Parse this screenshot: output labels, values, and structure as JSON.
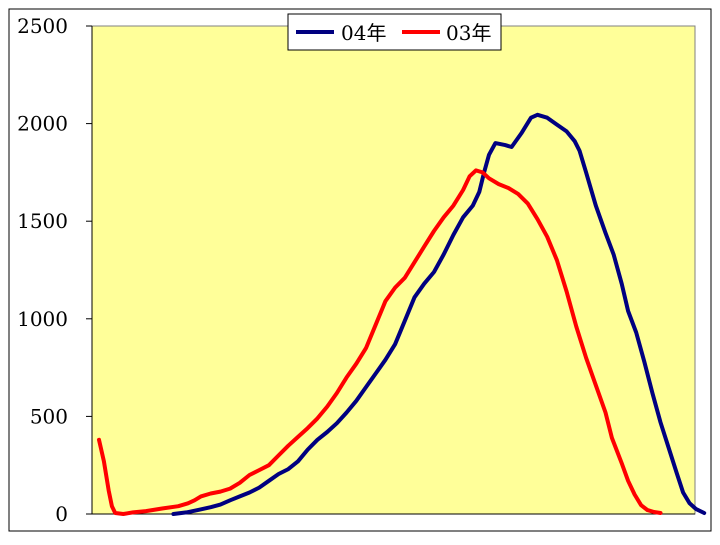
{
  "chart_data": {
    "type": "line",
    "title": "",
    "xlabel": "",
    "ylabel": "",
    "ylim": [
      0,
      2500
    ],
    "y_ticks": [
      "0",
      "500",
      "1000",
      "1500",
      "2000",
      "2500"
    ],
    "x_ticks_shown": false,
    "grid": false,
    "plot_background": "#FFFF99",
    "legend_position": "top-center",
    "x": [
      1,
      2,
      3,
      4,
      5,
      6,
      7,
      8,
      9,
      10,
      11,
      12,
      13,
      14,
      15,
      16,
      17,
      18,
      19,
      20,
      21,
      22,
      23,
      24,
      25,
      26,
      27,
      28,
      29,
      30,
      31,
      32,
      33,
      34,
      35,
      36,
      37,
      38,
      39,
      40,
      41,
      42,
      43,
      44,
      45,
      46,
      47,
      48,
      49,
      50,
      51,
      52,
      53,
      54,
      55,
      56,
      57,
      58,
      59,
      60,
      61,
      62,
      63,
      64,
      65,
      66,
      67,
      68,
      69,
      70,
      71,
      72,
      73,
      74,
      75,
      76,
      77,
      78,
      79,
      80,
      81,
      82,
      83,
      84,
      85,
      86,
      87,
      88,
      89,
      90,
      91,
      92,
      93,
      94,
      95,
      96,
      97,
      98,
      99,
      100,
      101,
      102,
      103,
      104,
      105,
      106,
      107,
      108,
      109,
      110,
      111,
      112,
      113,
      114,
      115,
      116,
      117,
      118,
      119,
      120,
      121,
      122,
      123,
      124,
      125,
      126,
      127,
      128,
      129,
      130,
      131,
      132,
      133,
      134,
      135,
      136,
      137,
      138,
      139,
      140,
      141,
      142,
      143,
      144,
      145,
      146,
      147,
      148,
      149,
      150,
      151,
      152,
      153,
      154,
      155,
      156,
      157,
      158,
      159,
      160,
      161,
      162,
      163,
      164,
      165,
      166,
      167,
      168,
      169,
      170,
      171,
      172,
      173,
      174,
      175,
      176,
      177,
      178,
      179,
      180,
      181,
      182,
      183,
      184,
      185,
      186,
      187,
      188,
      189,
      190,
      191,
      192,
      193,
      194,
      195,
      196,
      197,
      198,
      199,
      200,
      201,
      202,
      203,
      204,
      205,
      206,
      207,
      208,
      209,
      210,
      211,
      212,
      213,
      214,
      215,
      216,
      217,
      218,
      219,
      220,
      221,
      222,
      223,
      224,
      225,
      226,
      227,
      228,
      229,
      230,
      231,
      232,
      233,
      234,
      235,
      236,
      237,
      238,
      239,
      240,
      241,
      242,
      243,
      244,
      245,
      246,
      247,
      248,
      249,
      250,
      251,
      252,
      253,
      254,
      255,
      256,
      257,
      258,
      259,
      260,
      261,
      262,
      263,
      264,
      265,
      266,
      267,
      268,
      269,
      270,
      271,
      272,
      273,
      274,
      275,
      276,
      277,
      278,
      279,
      280,
      281,
      282,
      283,
      284,
      285,
      286,
      287,
      288,
      289,
      290,
      291,
      292,
      293,
      294,
      295,
      296,
      297,
      298,
      299,
      300,
      301,
      302,
      303,
      304,
      305,
      306,
      307,
      308,
      309,
      310,
      311,
      312,
      313,
      314,
      315,
      316,
      317,
      318,
      319,
      320,
      321,
      322,
      323,
      324,
      325,
      326,
      327,
      328,
      329,
      330,
      331,
      332,
      333,
      334,
      335,
      336,
      337,
      338,
      339,
      340,
      341,
      342,
      343,
      344,
      345,
      346,
      347,
      348,
      349,
      350,
      351,
      352,
      353,
      354,
      355,
      356,
      357,
      358,
      359,
      360,
      361,
      362,
      363,
      364,
      365
    ],
    "series": [
      {
        "name": "04年",
        "color": "#000080",
        "points": [
          [
            47,
            0
          ],
          [
            55,
            8
          ],
          [
            62,
            20
          ],
          [
            70,
            35
          ],
          [
            76,
            48
          ],
          [
            82,
            70
          ],
          [
            88,
            90
          ],
          [
            94,
            110
          ],
          [
            100,
            135
          ],
          [
            106,
            170
          ],
          [
            112,
            205
          ],
          [
            118,
            230
          ],
          [
            124,
            270
          ],
          [
            130,
            330
          ],
          [
            136,
            380
          ],
          [
            142,
            420
          ],
          [
            148,
            465
          ],
          [
            154,
            520
          ],
          [
            160,
            580
          ],
          [
            166,
            650
          ],
          [
            172,
            720
          ],
          [
            178,
            790
          ],
          [
            184,
            870
          ],
          [
            190,
            990
          ],
          [
            196,
            1110
          ],
          [
            202,
            1180
          ],
          [
            208,
            1240
          ],
          [
            214,
            1330
          ],
          [
            220,
            1430
          ],
          [
            226,
            1520
          ],
          [
            232,
            1580
          ],
          [
            236,
            1650
          ],
          [
            239,
            1750
          ],
          [
            242,
            1840
          ],
          [
            246,
            1900
          ],
          [
            252,
            1890
          ],
          [
            256,
            1880
          ],
          [
            262,
            1950
          ],
          [
            268,
            2030
          ],
          [
            272,
            2045
          ],
          [
            278,
            2030
          ],
          [
            284,
            1995
          ],
          [
            290,
            1960
          ],
          [
            295,
            1910
          ],
          [
            298,
            1860
          ],
          [
            302,
            1750
          ],
          [
            308,
            1580
          ],
          [
            314,
            1440
          ],
          [
            319,
            1330
          ],
          [
            324,
            1180
          ],
          [
            328,
            1040
          ],
          [
            333,
            930
          ],
          [
            338,
            780
          ],
          [
            343,
            620
          ],
          [
            348,
            470
          ],
          [
            353,
            340
          ],
          [
            358,
            210
          ],
          [
            362,
            110
          ],
          [
            366,
            55
          ],
          [
            370,
            25
          ],
          [
            375,
            5
          ]
        ]
      },
      {
        "name": "03年",
        "color": "#FF0000",
        "points": [
          [
            1,
            380
          ],
          [
            4,
            270
          ],
          [
            7,
            120
          ],
          [
            9,
            40
          ],
          [
            11,
            5
          ],
          [
            16,
            0
          ],
          [
            22,
            8
          ],
          [
            30,
            15
          ],
          [
            40,
            28
          ],
          [
            50,
            40
          ],
          [
            56,
            55
          ],
          [
            60,
            70
          ],
          [
            64,
            90
          ],
          [
            70,
            105
          ],
          [
            76,
            115
          ],
          [
            82,
            130
          ],
          [
            88,
            160
          ],
          [
            94,
            200
          ],
          [
            100,
            225
          ],
          [
            106,
            250
          ],
          [
            112,
            300
          ],
          [
            118,
            350
          ],
          [
            124,
            395
          ],
          [
            130,
            440
          ],
          [
            136,
            490
          ],
          [
            142,
            550
          ],
          [
            148,
            620
          ],
          [
            154,
            700
          ],
          [
            160,
            770
          ],
          [
            166,
            850
          ],
          [
            172,
            970
          ],
          [
            178,
            1090
          ],
          [
            184,
            1160
          ],
          [
            190,
            1210
          ],
          [
            196,
            1290
          ],
          [
            202,
            1370
          ],
          [
            208,
            1450
          ],
          [
            214,
            1520
          ],
          [
            220,
            1580
          ],
          [
            226,
            1660
          ],
          [
            230,
            1730
          ],
          [
            234,
            1760
          ],
          [
            238,
            1750
          ],
          [
            242,
            1720
          ],
          [
            248,
            1690
          ],
          [
            254,
            1670
          ],
          [
            260,
            1640
          ],
          [
            266,
            1590
          ],
          [
            272,
            1510
          ],
          [
            278,
            1420
          ],
          [
            284,
            1300
          ],
          [
            290,
            1140
          ],
          [
            296,
            960
          ],
          [
            302,
            800
          ],
          [
            308,
            660
          ],
          [
            314,
            520
          ],
          [
            318,
            390
          ],
          [
            324,
            260
          ],
          [
            328,
            170
          ],
          [
            332,
            100
          ],
          [
            336,
            45
          ],
          [
            340,
            20
          ],
          [
            344,
            10
          ],
          [
            348,
            5
          ]
        ]
      }
    ]
  }
}
